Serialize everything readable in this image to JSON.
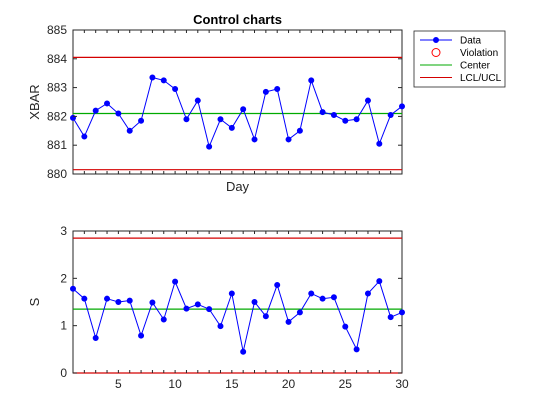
{
  "chart_data": [
    {
      "type": "line",
      "title": "Control charts",
      "xlabel": "Day",
      "ylabel": "XBAR",
      "xlim": [
        1,
        30
      ],
      "ylim": [
        880,
        885
      ],
      "yticks": [
        880,
        881,
        882,
        883,
        884,
        885
      ],
      "xticks": [],
      "grid": false,
      "series": [
        {
          "name": "Data",
          "x": [
            1,
            2,
            3,
            4,
            5,
            6,
            7,
            8,
            9,
            10,
            11,
            12,
            13,
            14,
            15,
            16,
            17,
            18,
            19,
            20,
            21,
            22,
            23,
            24,
            25,
            26,
            27,
            28,
            29,
            30
          ],
          "values": [
            881.95,
            881.3,
            882.2,
            882.45,
            882.1,
            881.5,
            881.85,
            883.35,
            883.25,
            882.95,
            881.9,
            882.55,
            880.95,
            881.9,
            881.6,
            882.25,
            881.2,
            882.85,
            882.95,
            881.2,
            881.5,
            883.25,
            882.15,
            882.05,
            881.85,
            881.9,
            882.55,
            881.05,
            882.05,
            882.35
          ],
          "color": "#0000ff"
        },
        {
          "name": "Center",
          "value": 882.1,
          "color": "#00aa00"
        },
        {
          "name": "LCL/UCL",
          "lcl": 880.15,
          "ucl": 884.05,
          "color": "#d40000"
        }
      ],
      "legend": {
        "placement": "outside-top-right",
        "entries": [
          {
            "label": "Data",
            "style": "line-marker",
            "color": "#0000ff"
          },
          {
            "label": "Violation",
            "style": "circle",
            "color": "#ff0000"
          },
          {
            "label": "Center",
            "style": "line",
            "color": "#00aa00"
          },
          {
            "label": "LCL/UCL",
            "style": "line",
            "color": "#d40000"
          }
        ]
      }
    },
    {
      "type": "line",
      "title": "",
      "xlabel": "",
      "ylabel": "S",
      "xlim": [
        1,
        30
      ],
      "ylim": [
        0,
        3
      ],
      "yticks": [
        0,
        1,
        2,
        3
      ],
      "xticks": [
        5,
        10,
        15,
        20,
        25,
        30
      ],
      "grid": false,
      "series": [
        {
          "name": "Data",
          "x": [
            1,
            2,
            3,
            4,
            5,
            6,
            7,
            8,
            9,
            10,
            11,
            12,
            13,
            14,
            15,
            16,
            17,
            18,
            19,
            20,
            21,
            22,
            23,
            24,
            25,
            26,
            27,
            28,
            29,
            30
          ],
          "values": [
            1.78,
            1.57,
            0.74,
            1.57,
            1.5,
            1.53,
            0.79,
            1.49,
            1.13,
            1.93,
            1.36,
            1.45,
            1.35,
            0.99,
            1.68,
            0.45,
            1.5,
            1.2,
            1.86,
            1.08,
            1.28,
            1.68,
            1.57,
            1.6,
            0.98,
            0.5,
            1.68,
            1.94,
            1.18,
            1.28
          ],
          "color": "#0000ff"
        },
        {
          "name": "Center",
          "value": 1.35,
          "color": "#00aa00"
        },
        {
          "name": "LCL/UCL",
          "lcl": 0.0,
          "ucl": 2.85,
          "color": "#d40000"
        }
      ]
    }
  ]
}
